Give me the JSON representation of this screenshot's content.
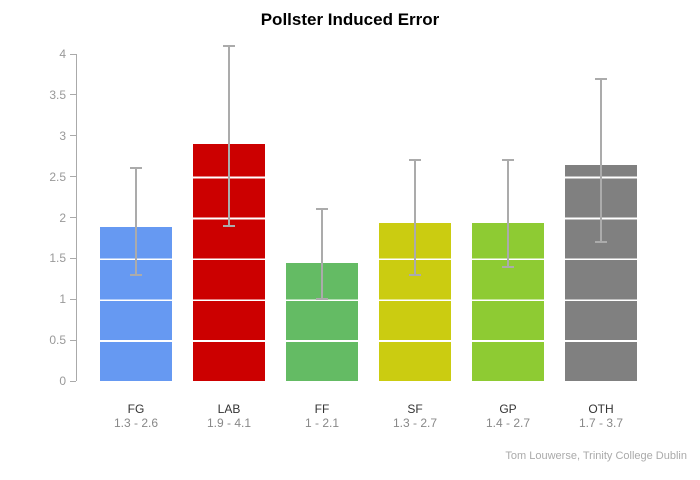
{
  "title": "Pollster Induced Error",
  "footer": "Tom Louwerse, Trinity College Dublin",
  "chart_data": {
    "type": "bar",
    "title": "Pollster Induced Error",
    "categories": [
      "FG",
      "LAB",
      "FF",
      "SF",
      "GP",
      "OTH"
    ],
    "values": [
      1.88,
      2.9,
      1.44,
      1.93,
      1.93,
      2.64
    ],
    "error_low": [
      1.3,
      1.9,
      1.0,
      1.3,
      1.4,
      1.7
    ],
    "error_high": [
      2.6,
      4.1,
      2.1,
      2.7,
      2.7,
      3.7
    ],
    "range_labels": [
      "1.3 - 2.6",
      "1.9 - 4.1",
      "1 - 2.1",
      "1.3 - 2.7",
      "1.4 - 2.7",
      "1.7 - 3.7"
    ],
    "bar_colors": [
      "#6699f2",
      "#cc0000",
      "#64bb64",
      "#cbcc11",
      "#8ecb33",
      "#808080"
    ],
    "y_tick_labels": [
      "0",
      "0.5",
      "1",
      "1.5",
      "2",
      "2.5",
      "3",
      "3.5",
      "4"
    ],
    "y_tick_values": [
      0,
      0.5,
      1,
      1.5,
      2,
      2.5,
      3,
      3.5,
      4
    ],
    "ylim": [
      0,
      4
    ],
    "xlabel": "",
    "ylabel": "",
    "legend": "none",
    "grid": "white gridlines drawn across bars only, every 0.5 units",
    "error_bar_color": "#ababab",
    "axis_color": "#aaaaaa",
    "gridline_color": "#ffffff"
  }
}
